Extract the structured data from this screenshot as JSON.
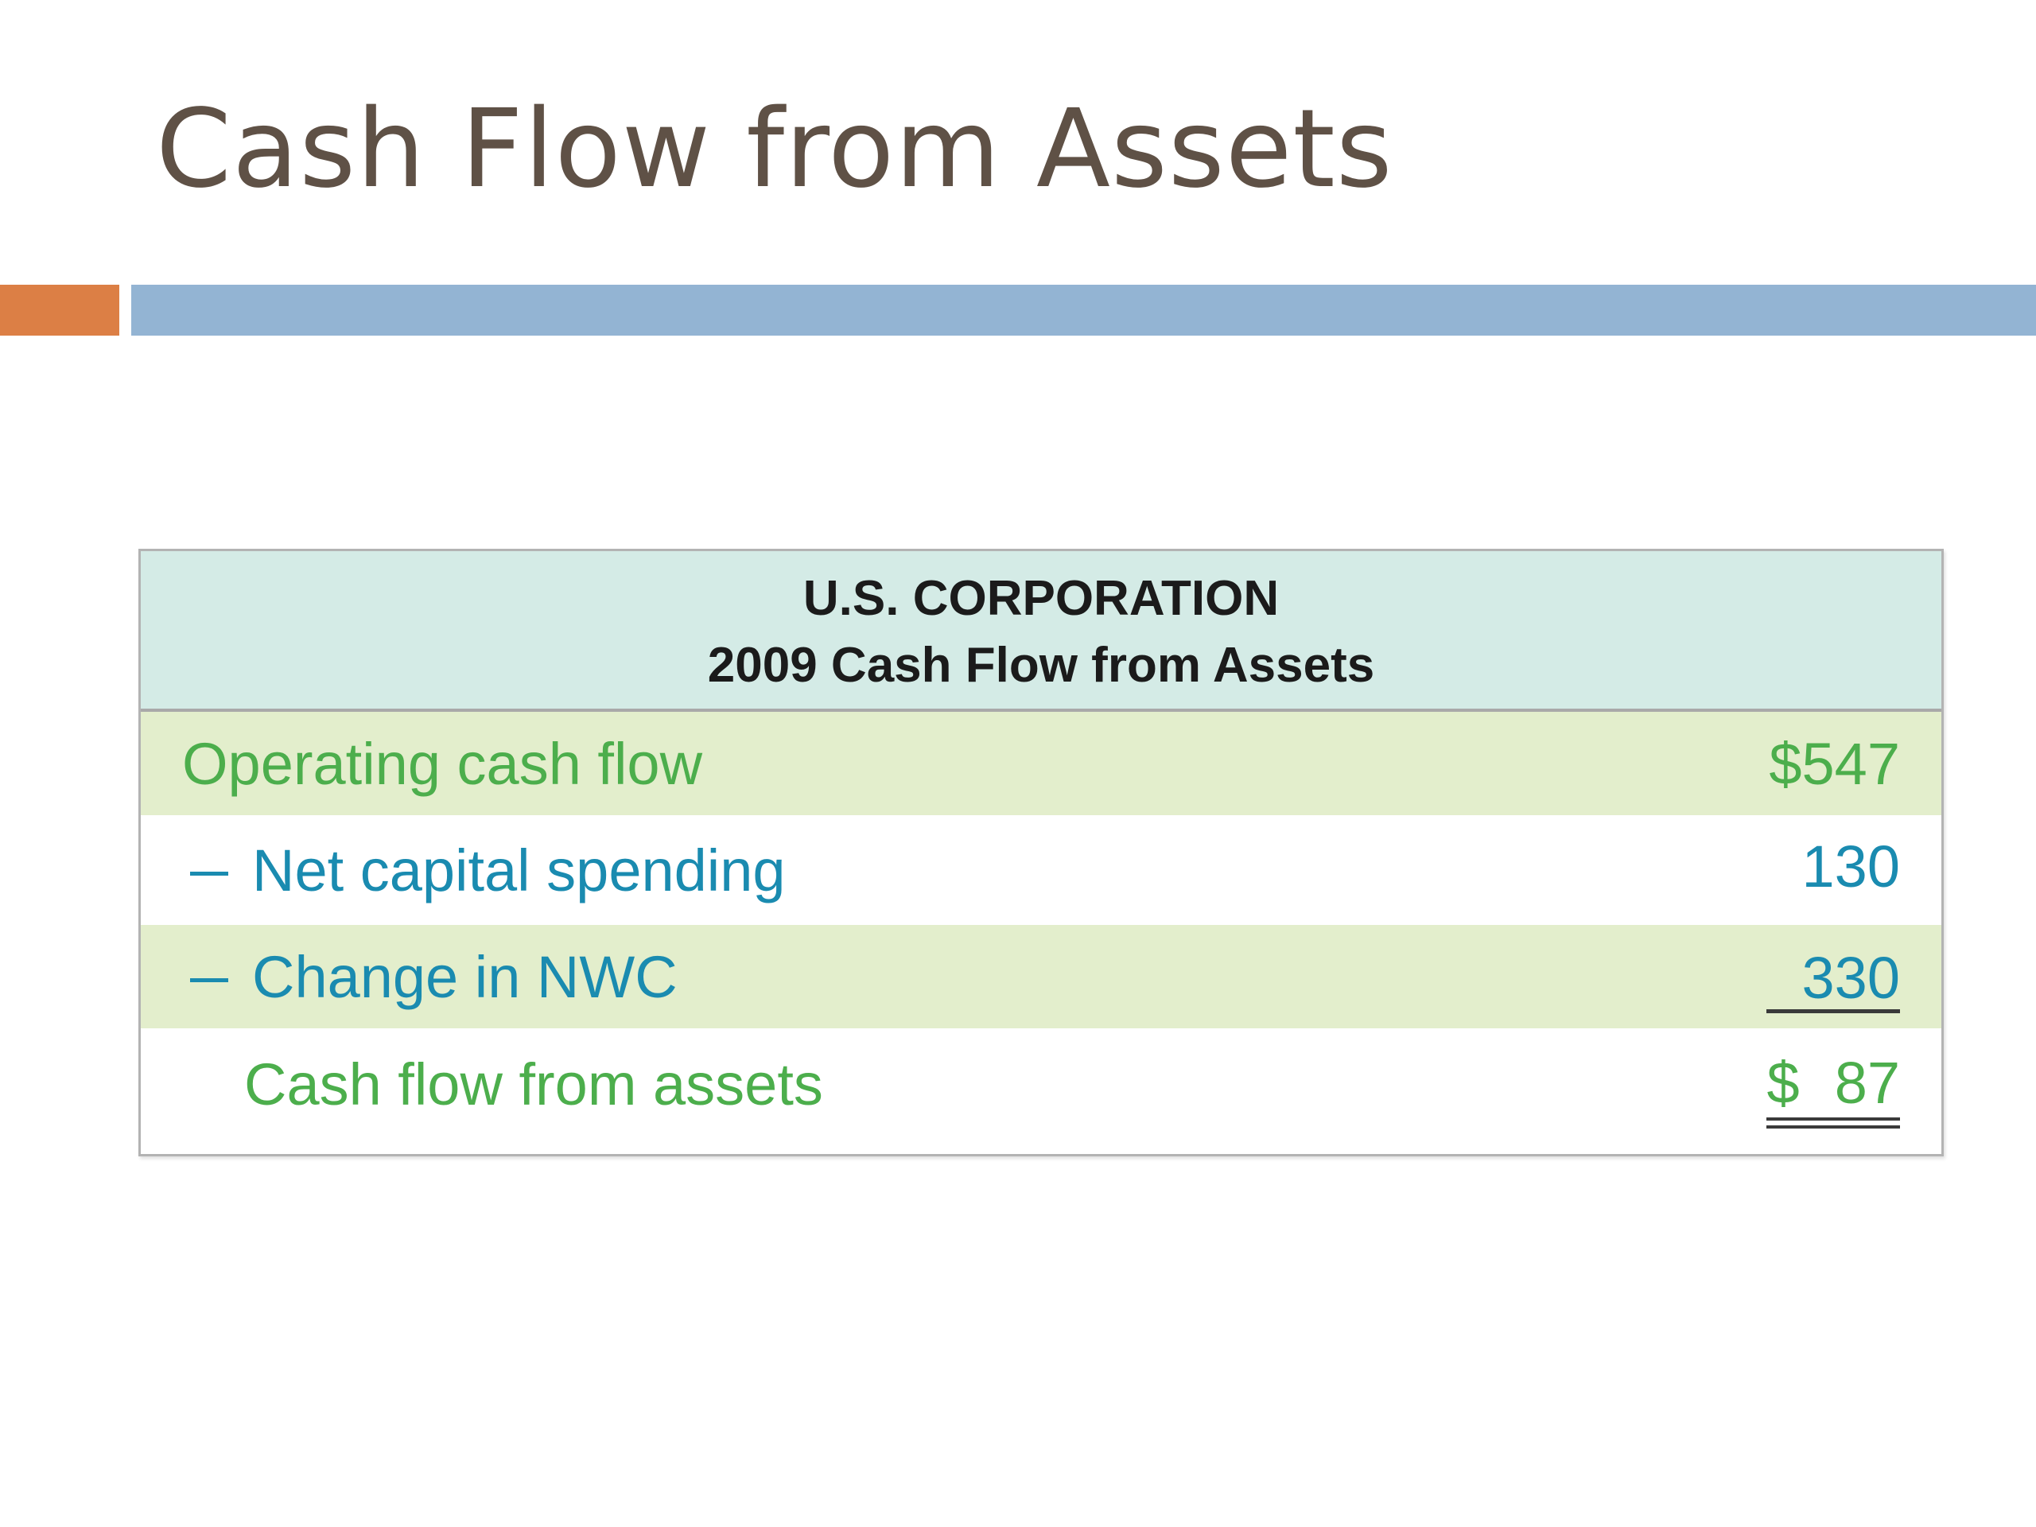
{
  "slide": {
    "title": "Cash Flow from Assets"
  },
  "colors": {
    "title": "#5f5146",
    "accent_orange": "#dc7f45",
    "accent_blue": "#93b4d3",
    "header_bg": "#d4ebe6",
    "shaded_row_bg": "#e3eecc",
    "green_text": "#4cae4c",
    "blue_text": "#1a8bb0"
  },
  "table": {
    "company": "U.S. CORPORATION",
    "subtitle": "2009 Cash Flow from Assets",
    "rows": [
      {
        "label": "Operating cash flow",
        "value": "$547",
        "color": "green",
        "shaded": true,
        "minus": false
      },
      {
        "label": "Net capital spending",
        "value": "130",
        "color": "blue",
        "shaded": false,
        "minus": true
      },
      {
        "label": "Change in NWC",
        "value": "330",
        "color": "blue",
        "shaded": true,
        "minus": true,
        "underline": "single"
      },
      {
        "label": "Cash flow from assets",
        "value_currency": "$",
        "value": "87",
        "color": "green",
        "shaded": false,
        "minus": false,
        "underline": "double"
      }
    ]
  }
}
